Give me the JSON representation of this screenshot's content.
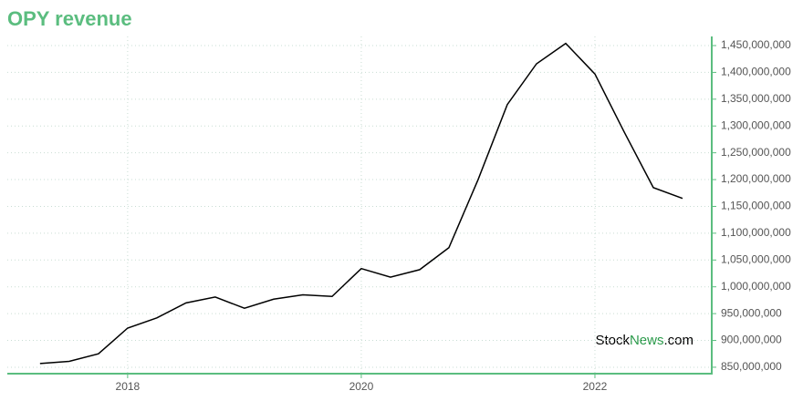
{
  "chart_data": {
    "type": "line",
    "title": "OPY revenue",
    "x": [
      2017.25,
      2017.5,
      2017.75,
      2018.0,
      2018.25,
      2018.5,
      2018.75,
      2019.0,
      2019.25,
      2019.5,
      2019.75,
      2020.0,
      2020.25,
      2020.5,
      2020.75,
      2021.0,
      2021.25,
      2021.5,
      2021.75,
      2022.0,
      2022.25,
      2022.5,
      2022.75
    ],
    "series": [
      {
        "name": "OPY revenue",
        "color": "#000000",
        "values": [
          857000000,
          861000000,
          875000000,
          923000000,
          942000000,
          970000000,
          981000000,
          960000000,
          977000000,
          985000000,
          982000000,
          1034000000,
          1018000000,
          1032000000,
          1073000000,
          1200000000,
          1340000000,
          1416000000,
          1454000000,
          1397000000,
          1289000000,
          1185000000,
          1165000000
        ]
      }
    ],
    "xlim": [
      2016.97,
      2023.0
    ],
    "xticks": [
      2018,
      2020,
      2022
    ],
    "ylim": [
      838000000,
      1467000000
    ],
    "yticks": [
      {
        "value": 850000000,
        "label": "850,000,000"
      },
      {
        "value": 900000000,
        "label": "900,000,000"
      },
      {
        "value": 950000000,
        "label": "950,000,000"
      },
      {
        "value": 1000000000,
        "label": "1,000,000,000"
      },
      {
        "value": 1050000000,
        "label": "1,050,000,000"
      },
      {
        "value": 1100000000,
        "label": "1,100,000,000"
      },
      {
        "value": 1150000000,
        "label": "1,150,000,000"
      },
      {
        "value": 1200000000,
        "label": "1,200,000,000"
      },
      {
        "value": 1250000000,
        "label": "1,250,000,000"
      },
      {
        "value": 1300000000,
        "label": "1,300,000,000"
      },
      {
        "value": 1350000000,
        "label": "1,350,000,000"
      },
      {
        "value": 1400000000,
        "label": "1,400,000,000"
      },
      {
        "value": 1450000000,
        "label": "1,450,000,000"
      }
    ],
    "grid": true,
    "axis_color": "#5bbd7f",
    "title_color": "#5bbd7f",
    "watermark": [
      "Stock",
      "News",
      ".com"
    ]
  }
}
